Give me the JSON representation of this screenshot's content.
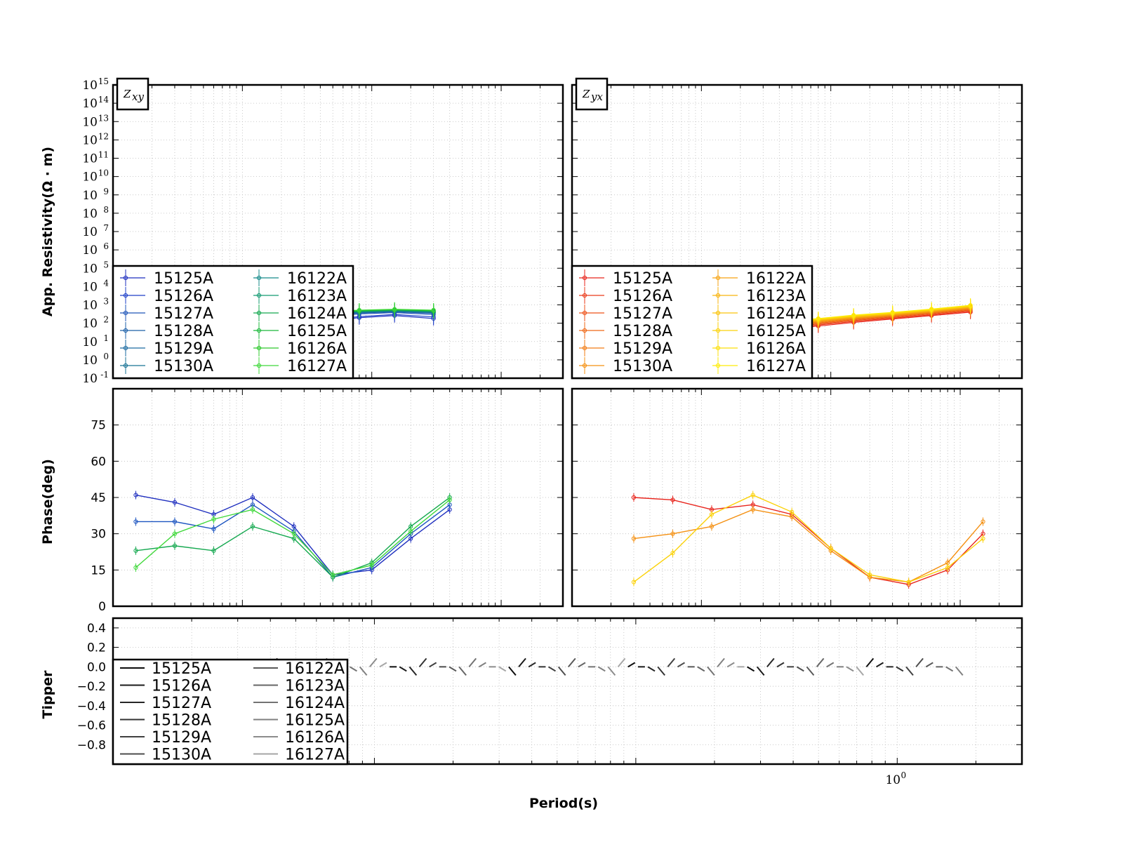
{
  "chart_data": [
    {
      "id": "zxy-resistivity",
      "type": "scatter",
      "panel_tag": "Z_xy",
      "panel_tag_sub": "xy",
      "ylabel": "App. Resistivity(Ω · m)",
      "yscale": "log",
      "ylim_exp": [
        -1,
        15
      ],
      "y_ticks_exp": [
        -1,
        0,
        1,
        2,
        3,
        4,
        5,
        6,
        7,
        8,
        9,
        10,
        11,
        12,
        13,
        14,
        15
      ],
      "xscale": "log",
      "xlim": [
        0.001,
        3
      ],
      "legend_loc": "lower-left",
      "legend_columns": 2,
      "series": [
        {
          "name": "15125A",
          "color": "#1f2fbf",
          "marker": "s",
          "x": [
            0.0025,
            0.005,
            0.01,
            0.02,
            0.04,
            0.08,
            0.15,
            0.3
          ],
          "y": [
            60,
            45,
            40,
            60,
            120,
            200,
            260,
            180
          ]
        },
        {
          "name": "15126A",
          "color": "#1d3fc8",
          "marker": "o",
          "x": [
            0.0025,
            0.005,
            0.01,
            0.02,
            0.04,
            0.08,
            0.15,
            0.3
          ],
          "y": [
            70,
            55,
            50,
            70,
            140,
            230,
            300,
            220
          ]
        },
        {
          "name": "15127A",
          "color": "#1f55b8",
          "marker": "x",
          "x": [
            0.0025,
            0.005,
            0.01,
            0.02,
            0.04,
            0.08,
            0.15,
            0.3
          ],
          "y": [
            90,
            80,
            90,
            130,
            220,
            320,
            380,
            300
          ]
        },
        {
          "name": "15128A",
          "color": "#1c5fa8",
          "marker": "+",
          "x": [
            0.0025,
            0.005,
            0.01,
            0.02,
            0.04,
            0.08,
            0.15,
            0.3
          ],
          "y": [
            100,
            95,
            110,
            160,
            260,
            360,
            420,
            350
          ]
        },
        {
          "name": "15129A",
          "color": "#1a6aa0",
          "marker": ".",
          "x": [
            0.0025,
            0.005,
            0.01,
            0.02,
            0.04,
            0.08,
            0.15,
            0.3
          ],
          "y": [
            110,
            100,
            120,
            180,
            280,
            380,
            440,
            380
          ]
        },
        {
          "name": "15130A",
          "color": "#197395",
          "marker": "|",
          "x": [
            0.0025,
            0.005,
            0.01,
            0.02,
            0.04,
            0.08,
            0.15,
            0.3
          ],
          "y": [
            120,
            110,
            130,
            190,
            300,
            400,
            460,
            400
          ]
        },
        {
          "name": "16122A",
          "color": "#168a8a",
          "marker": "_",
          "x": [
            0.0025,
            0.005,
            0.01,
            0.02,
            0.04,
            0.08,
            0.15,
            0.3
          ],
          "y": [
            130,
            120,
            140,
            200,
            320,
            420,
            480,
            420
          ]
        },
        {
          "name": "16123A",
          "color": "#139a72",
          "marker": "|",
          "x": [
            0.0025,
            0.005,
            0.01,
            0.02,
            0.04,
            0.08,
            0.15,
            0.3
          ],
          "y": [
            140,
            130,
            150,
            220,
            340,
            440,
            500,
            440
          ]
        },
        {
          "name": "16124A",
          "color": "#14a84f",
          "marker": "s",
          "x": [
            0.0025,
            0.005,
            0.01,
            0.02,
            0.04,
            0.08,
            0.15,
            0.3
          ],
          "y": [
            150,
            140,
            160,
            240,
            360,
            460,
            520,
            460
          ]
        },
        {
          "name": "16125A",
          "color": "#1bb83b",
          "marker": "D",
          "x": [
            0.0025,
            0.005,
            0.01,
            0.02,
            0.04,
            0.08,
            0.15,
            0.3
          ],
          "y": [
            160,
            150,
            170,
            260,
            380,
            480,
            540,
            480
          ]
        },
        {
          "name": "16126A",
          "color": "#2cc82b",
          "marker": "x",
          "x": [
            0.0025,
            0.005,
            0.01,
            0.02,
            0.04,
            0.08,
            0.15,
            0.3
          ],
          "y": [
            170,
            160,
            180,
            280,
            400,
            500,
            560,
            500
          ]
        },
        {
          "name": "16127A",
          "color": "#3fd83a",
          "marker": "+",
          "x": [
            0.0025,
            0.005,
            0.01,
            0.02,
            0.04,
            0.08,
            0.15,
            0.3
          ],
          "y": [
            180,
            170,
            190,
            300,
            420,
            520,
            580,
            520
          ]
        }
      ]
    },
    {
      "id": "zyx-resistivity",
      "type": "scatter",
      "panel_tag": "Z_yx",
      "panel_tag_sub": "yx",
      "yscale": "log",
      "ylim_exp": [
        -1,
        15
      ],
      "xscale": "log",
      "xlim": [
        0.001,
        3
      ],
      "legend_loc": "lower-left",
      "legend_columns": 2,
      "series": [
        {
          "name": "15125A",
          "color": "#e8241c",
          "marker": "o",
          "x": [
            0.02,
            0.04,
            0.08,
            0.15,
            0.3,
            0.6,
            1.2
          ],
          "y": [
            30,
            45,
            70,
            110,
            170,
            260,
            400
          ]
        },
        {
          "name": "15126A",
          "color": "#ea3a1a",
          "marker": "o",
          "x": [
            0.02,
            0.04,
            0.08,
            0.15,
            0.3,
            0.6,
            1.2
          ],
          "y": [
            35,
            50,
            80,
            125,
            190,
            290,
            450
          ]
        },
        {
          "name": "15127A",
          "color": "#ed5118",
          "marker": "o",
          "x": [
            0.02,
            0.04,
            0.08,
            0.15,
            0.3,
            0.6,
            1.2
          ],
          "y": [
            40,
            58,
            90,
            140,
            210,
            320,
            500
          ]
        },
        {
          "name": "15128A",
          "color": "#ef6716",
          "marker": "o",
          "x": [
            0.02,
            0.04,
            0.08,
            0.15,
            0.3,
            0.6,
            1.2
          ],
          "y": [
            45,
            65,
            100,
            155,
            230,
            350,
            550
          ]
        },
        {
          "name": "15129A",
          "color": "#f27c14",
          "marker": "o",
          "x": [
            0.02,
            0.04,
            0.08,
            0.15,
            0.3,
            0.6,
            1.2
          ],
          "y": [
            50,
            72,
            110,
            170,
            250,
            380,
            600
          ]
        },
        {
          "name": "15130A",
          "color": "#f49012",
          "marker": "o",
          "x": [
            0.02,
            0.04,
            0.08,
            0.15,
            0.3,
            0.6,
            1.2
          ],
          "y": [
            55,
            80,
            120,
            185,
            270,
            410,
            650
          ]
        },
        {
          "name": "16122A",
          "color": "#f6a210",
          "marker": "+",
          "x": [
            0.02,
            0.04,
            0.08,
            0.15,
            0.3,
            0.6,
            1.2
          ],
          "y": [
            60,
            88,
            130,
            200,
            290,
            440,
            700
          ]
        },
        {
          "name": "16123A",
          "color": "#f8b30e",
          "marker": "_",
          "x": [
            0.02,
            0.04,
            0.08,
            0.15,
            0.3,
            0.6,
            1.2
          ],
          "y": [
            65,
            95,
            140,
            215,
            310,
            470,
            750
          ]
        },
        {
          "name": "16124A",
          "color": "#f9c30c",
          "marker": "o",
          "x": [
            0.02,
            0.04,
            0.08,
            0.15,
            0.3,
            0.6,
            1.2
          ],
          "y": [
            70,
            100,
            150,
            230,
            330,
            500,
            800
          ]
        },
        {
          "name": "16125A",
          "color": "#fbd20a",
          "marker": "o",
          "x": [
            0.02,
            0.04,
            0.08,
            0.15,
            0.3,
            0.6,
            1.2
          ],
          "y": [
            75,
            108,
            160,
            245,
            350,
            530,
            850
          ]
        },
        {
          "name": "16126A",
          "color": "#fcdf08",
          "marker": "o",
          "x": [
            0.02,
            0.04,
            0.08,
            0.15,
            0.3,
            0.6,
            1.2
          ],
          "y": [
            80,
            115,
            170,
            260,
            370,
            560,
            900
          ]
        },
        {
          "name": "16127A",
          "color": "#feec06",
          "marker": "o",
          "x": [
            0.02,
            0.04,
            0.08,
            0.15,
            0.3,
            0.6,
            1.2
          ],
          "y": [
            85,
            122,
            180,
            275,
            390,
            590,
            950
          ]
        }
      ]
    },
    {
      "id": "zxy-phase",
      "type": "scatter",
      "ylabel": "Phase(deg)",
      "ylim": [
        0,
        90
      ],
      "y_ticks": [
        0,
        15,
        30,
        45,
        60,
        75
      ],
      "xscale": "log",
      "xlim": [
        0.001,
        3
      ],
      "series": [
        {
          "name": "15125A",
          "x": [
            0.0015,
            0.003,
            0.006,
            0.012,
            0.025,
            0.05,
            0.1,
            0.2,
            0.4
          ],
          "y": [
            46,
            43,
            38,
            45,
            33,
            13,
            15,
            28,
            40
          ]
        },
        {
          "name": "15126A",
          "x": [
            0.0015,
            0.003,
            0.006,
            0.012,
            0.025,
            0.05,
            0.1,
            0.2,
            0.4
          ],
          "y": [
            35,
            35,
            32,
            42,
            31,
            12,
            16,
            30,
            42
          ]
        },
        {
          "name": "16124A",
          "x": [
            0.0015,
            0.003,
            0.006,
            0.012,
            0.025,
            0.05,
            0.1,
            0.2,
            0.4
          ],
          "y": [
            23,
            25,
            23,
            33,
            28,
            12,
            18,
            33,
            45
          ]
        },
        {
          "name": "16127A",
          "x": [
            0.0015,
            0.003,
            0.006,
            0.012,
            0.025,
            0.05,
            0.1,
            0.2,
            0.4
          ],
          "y": [
            16,
            30,
            36,
            40,
            30,
            13,
            17,
            31,
            44
          ]
        }
      ]
    },
    {
      "id": "zyx-phase",
      "type": "scatter",
      "ylim": [
        0,
        90
      ],
      "xscale": "log",
      "xlim": [
        0.001,
        3
      ],
      "series": [
        {
          "name": "15125A",
          "x": [
            0.003,
            0.006,
            0.012,
            0.025,
            0.05,
            0.1,
            0.2,
            0.4,
            0.8,
            1.5
          ],
          "y": [
            45,
            44,
            40,
            42,
            38,
            24,
            12,
            9,
            15,
            30
          ]
        },
        {
          "name": "15130A",
          "x": [
            0.003,
            0.006,
            0.012,
            0.025,
            0.05,
            0.1,
            0.2,
            0.4,
            0.8,
            1.5
          ],
          "y": [
            28,
            30,
            33,
            40,
            37,
            23,
            12,
            10,
            18,
            35
          ]
        },
        {
          "name": "16127A",
          "x": [
            0.003,
            0.006,
            0.012,
            0.025,
            0.05,
            0.1,
            0.2,
            0.4,
            0.8,
            1.5
          ],
          "y": [
            10,
            22,
            38,
            46,
            39,
            24,
            13,
            10,
            16,
            28
          ]
        }
      ]
    },
    {
      "id": "tipper",
      "type": "line",
      "ylabel": "Tipper",
      "xlabel": "Period(s)",
      "ylim": [
        -1.0,
        0.5
      ],
      "y_ticks": [
        0.4,
        0.2,
        0.0,
        -0.2,
        -0.4,
        -0.6,
        -0.8
      ],
      "y_tick_labels": [
        "0.4",
        "0.2",
        "0.0",
        "−0.2",
        "−0.4",
        "−0.6",
        "−0.8"
      ],
      "xscale": "log",
      "xlim": [
        0.001,
        3
      ],
      "x_tick_labels": [
        {
          "base": "10",
          "exp": "0",
          "value": 1
        }
      ],
      "legend_loc": "lower-left",
      "legend_columns": 2,
      "series": [
        {
          "name": "15125A",
          "color": "#0d0d0d"
        },
        {
          "name": "15126A",
          "color": "#1a1a1a"
        },
        {
          "name": "15127A",
          "color": "#262626"
        },
        {
          "name": "15128A",
          "color": "#333333"
        },
        {
          "name": "15129A",
          "color": "#404040"
        },
        {
          "name": "15130A",
          "color": "#4d4d4d"
        },
        {
          "name": "16122A",
          "color": "#595959"
        },
        {
          "name": "16123A",
          "color": "#666666"
        },
        {
          "name": "16124A",
          "color": "#737373"
        },
        {
          "name": "16125A",
          "color": "#808080"
        },
        {
          "name": "16126A",
          "color": "#8c8c8c"
        },
        {
          "name": "16127A",
          "color": "#a6a6a6"
        }
      ]
    }
  ]
}
